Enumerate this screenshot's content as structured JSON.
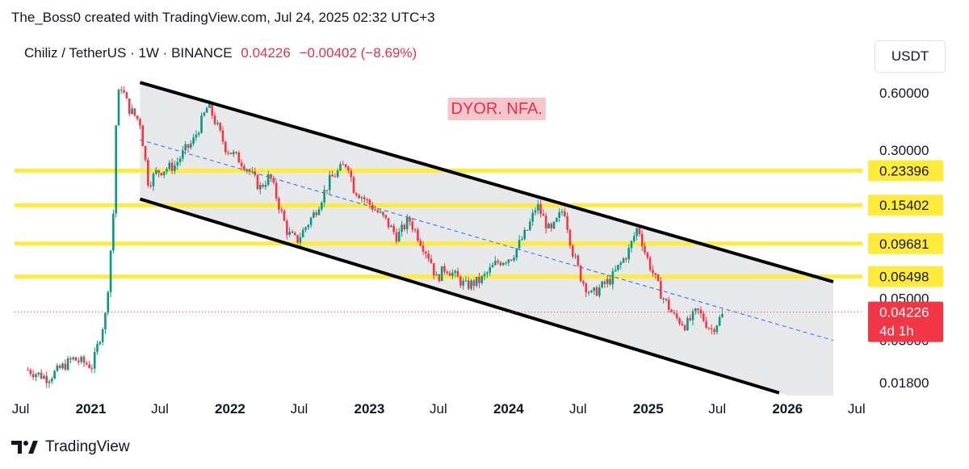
{
  "header": {
    "attribution": "The_Boss0 created with TradingView.com, Jul 24, 2025 02:32 UTC+3"
  },
  "symbol": {
    "name": "Chiliz / TetherUS",
    "interval": "1W",
    "exchange": "BINANCE",
    "separator": "·",
    "price": "0.04226",
    "change": "−0.00402 (−8.69%)"
  },
  "currency": "USDT",
  "note": "DYOR. NFA.",
  "footer": {
    "brand": "TradingView",
    "logo_icon": "tradingview-logo-icon"
  },
  "colors": {
    "up": "#089981",
    "down": "#f23645",
    "level": "#ffeb3b",
    "channel_fill": "#e3e4e6",
    "channel_line": "#000000",
    "midline": "#2962ff",
    "note_bg": "#f7c6cc",
    "note_text": "#e0314b",
    "price_tag": "#f23645"
  },
  "chart_data": {
    "type": "candlestick",
    "interval": "1W",
    "scale": "log",
    "ylim": [
      0.016,
      0.8
    ],
    "xlim": [
      "2020-06-15",
      "2026-07-10"
    ],
    "x_ticks": [
      {
        "date": "2020-07-01",
        "label": "Jul"
      },
      {
        "date": "2021-01-01",
        "label": "2021"
      },
      {
        "date": "2021-07-01",
        "label": "Jul"
      },
      {
        "date": "2022-01-01",
        "label": "2022"
      },
      {
        "date": "2022-07-01",
        "label": "Jul"
      },
      {
        "date": "2023-01-01",
        "label": "2023"
      },
      {
        "date": "2023-07-01",
        "label": "Jul"
      },
      {
        "date": "2024-01-01",
        "label": "2024"
      },
      {
        "date": "2024-07-01",
        "label": "Jul"
      },
      {
        "date": "2025-01-01",
        "label": "2025"
      },
      {
        "date": "2025-07-01",
        "label": "Jul"
      },
      {
        "date": "2026-01-01",
        "label": "2026"
      },
      {
        "date": "2026-07-01",
        "label": "Jul"
      }
    ],
    "y_ticks": [
      "0.60000",
      "0.30000",
      "0.05000",
      "0.03000",
      "0.01800"
    ],
    "levels": [
      {
        "value": 0.23396,
        "label": "0.23396"
      },
      {
        "value": 0.15402,
        "label": "0.15402"
      },
      {
        "value": 0.09681,
        "label": "0.09681"
      },
      {
        "value": 0.06498,
        "label": "0.06498"
      }
    ],
    "last_price": {
      "value": 0.04226,
      "label": "0.04226",
      "countdown": "4d 1h"
    },
    "channel": {
      "upper": [
        {
          "date": "2021-05-10",
          "value": 0.68
        },
        {
          "date": "2026-05-01",
          "value": 0.061
        }
      ],
      "lower": [
        {
          "date": "2021-05-10",
          "value": 0.166
        },
        {
          "date": "2025-12-10",
          "value": 0.0159
        }
      ],
      "mid": [
        {
          "date": "2021-05-10",
          "value": 0.34
        },
        {
          "date": "2026-05-01",
          "value": 0.03
        }
      ]
    },
    "series_anchors": [
      [
        "2020-07-20",
        0.021
      ],
      [
        "2020-09-10",
        0.019
      ],
      [
        "2020-11-15",
        0.024
      ],
      [
        "2021-01-05",
        0.022
      ],
      [
        "2021-02-10",
        0.042
      ],
      [
        "2021-03-01",
        0.14
      ],
      [
        "2021-03-10",
        0.55
      ],
      [
        "2021-03-22",
        0.65
      ],
      [
        "2021-04-10",
        0.5
      ],
      [
        "2021-05-10",
        0.42
      ],
      [
        "2021-06-01",
        0.2
      ],
      [
        "2021-06-22",
        0.23
      ],
      [
        "2021-08-10",
        0.25
      ],
      [
        "2021-09-05",
        0.3
      ],
      [
        "2021-09-25",
        0.33
      ],
      [
        "2021-11-05",
        0.52
      ],
      [
        "2021-12-20",
        0.31
      ],
      [
        "2022-02-10",
        0.25
      ],
      [
        "2022-03-20",
        0.19
      ],
      [
        "2022-04-15",
        0.22
      ],
      [
        "2022-06-01",
        0.11
      ],
      [
        "2022-06-25",
        0.1
      ],
      [
        "2022-08-10",
        0.14
      ],
      [
        "2022-09-20",
        0.21
      ],
      [
        "2022-11-05",
        0.26
      ],
      [
        "2022-11-20",
        0.19
      ],
      [
        "2023-01-10",
        0.15
      ],
      [
        "2023-02-10",
        0.13
      ],
      [
        "2023-03-15",
        0.105
      ],
      [
        "2023-04-15",
        0.13
      ],
      [
        "2023-06-10",
        0.08
      ],
      [
        "2023-06-25",
        0.063
      ],
      [
        "2023-07-20",
        0.073
      ],
      [
        "2023-09-10",
        0.058
      ],
      [
        "2023-10-20",
        0.062
      ],
      [
        "2023-12-01",
        0.077
      ],
      [
        "2024-01-10",
        0.083
      ],
      [
        "2024-02-20",
        0.115
      ],
      [
        "2024-03-15",
        0.155
      ],
      [
        "2024-04-20",
        0.11
      ],
      [
        "2024-05-25",
        0.15
      ],
      [
        "2024-06-15",
        0.09
      ],
      [
        "2024-07-10",
        0.063
      ],
      [
        "2024-08-05",
        0.052
      ],
      [
        "2024-09-25",
        0.063
      ],
      [
        "2024-11-10",
        0.088
      ],
      [
        "2024-12-05",
        0.12
      ],
      [
        "2024-12-25",
        0.085
      ],
      [
        "2025-02-05",
        0.052
      ],
      [
        "2025-03-10",
        0.04
      ],
      [
        "2025-04-10",
        0.036
      ],
      [
        "2025-05-10",
        0.043
      ],
      [
        "2025-06-15",
        0.034
      ],
      [
        "2025-07-20",
        0.042
      ]
    ]
  }
}
